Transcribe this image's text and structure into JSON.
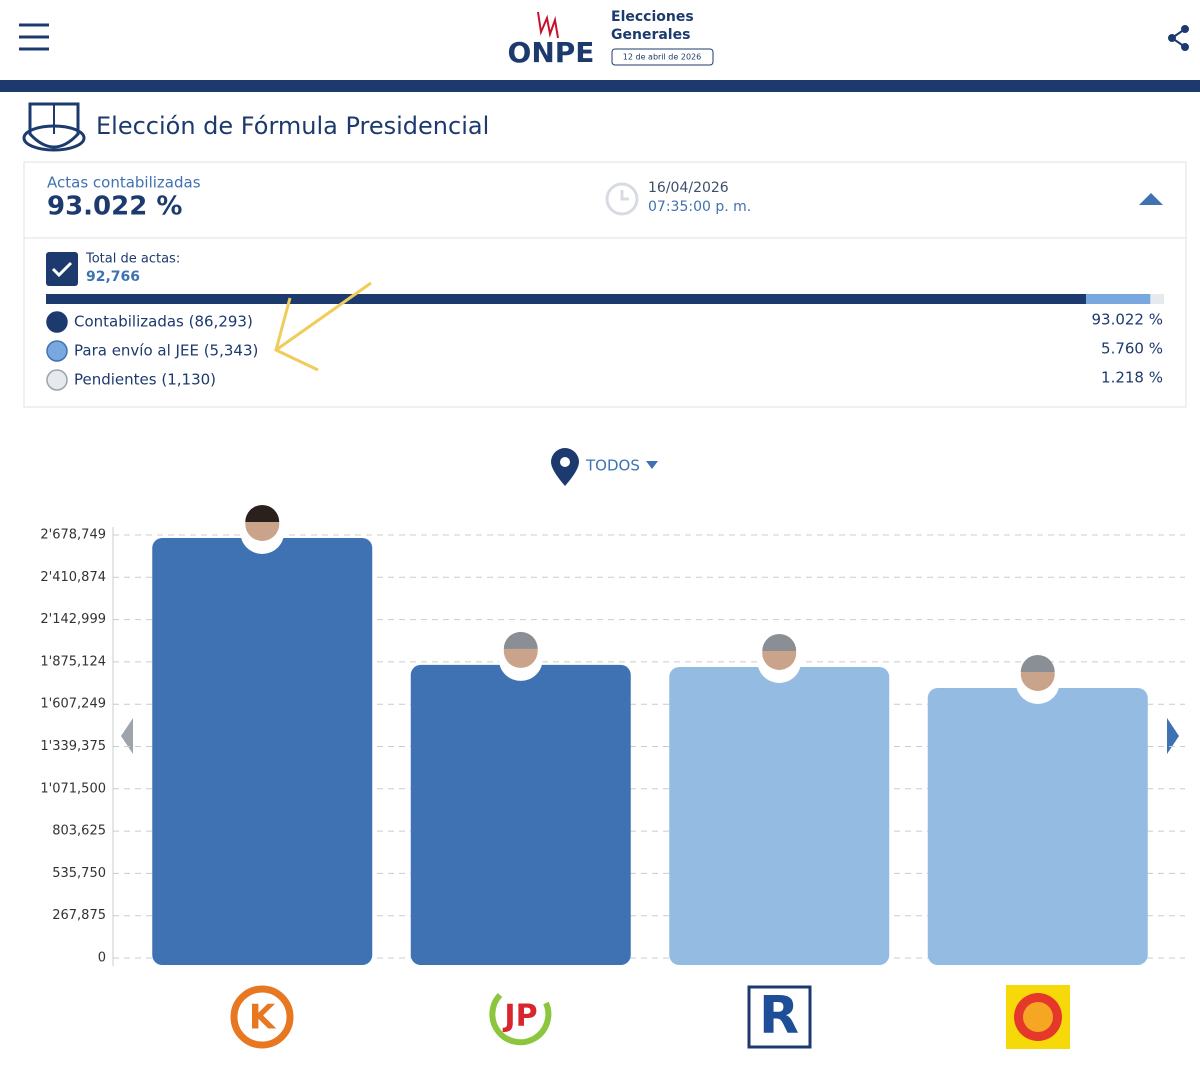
{
  "header": {
    "logo": "ONPE",
    "event_line1": "Elecciones",
    "event_line2": "Generales",
    "date": "12 de abril de 2026"
  },
  "page_title": "Elección de Fórmula Presidencial",
  "summary": {
    "label": "Actas contabilizadas",
    "percent": "93.022 %",
    "date": "16/04/2026",
    "time": "07:35:00 p. m.",
    "total_label": "Total de actas:",
    "total": "92,766"
  },
  "progress": {
    "type": "stacked-bar",
    "names": [
      "Contabilizadas (86,293)",
      "Para envío al JEE (5,343)",
      "Pendientes (1,130)"
    ],
    "values": [
      93.022,
      5.76,
      1.218
    ],
    "value_labels": [
      "93.022 %",
      "5.760 %",
      "1.218 %"
    ],
    "colors": [
      "#1d3a6e",
      "#78a8dd",
      "#e6e9ee"
    ]
  },
  "filter": "TODOS",
  "party_logos": [
    "K",
    "JP",
    "R"
  ],
  "chart_data": {
    "type": "bar",
    "values": [
      2660000,
      1856000,
      1843000,
      1710000
    ],
    "colors": [
      "#3f72b3",
      "#3f72b3",
      "#94bce3",
      "#94bce3"
    ],
    "ylim": [
      0,
      2678749
    ],
    "yticks": [
      0,
      {
        "value": 267875,
        "label": "267,875"
      },
      {
        "value": 535750,
        "label": "535,750"
      },
      {
        "value": 803625,
        "label": "803,625"
      },
      {
        "value": 1071500,
        "label": "1'071,500"
      },
      {
        "value": 1339375,
        "label": "1'339,375"
      },
      {
        "value": 1607249,
        "label": "1'607,249"
      },
      {
        "value": 1875124,
        "label": "1'875,124"
      },
      {
        "value": 2142999,
        "label": "2'142,999"
      },
      {
        "value": 2410874,
        "label": "2'410,874"
      },
      {
        "value": 2678749,
        "label": "2'678,749"
      }
    ],
    "grid": true
  }
}
